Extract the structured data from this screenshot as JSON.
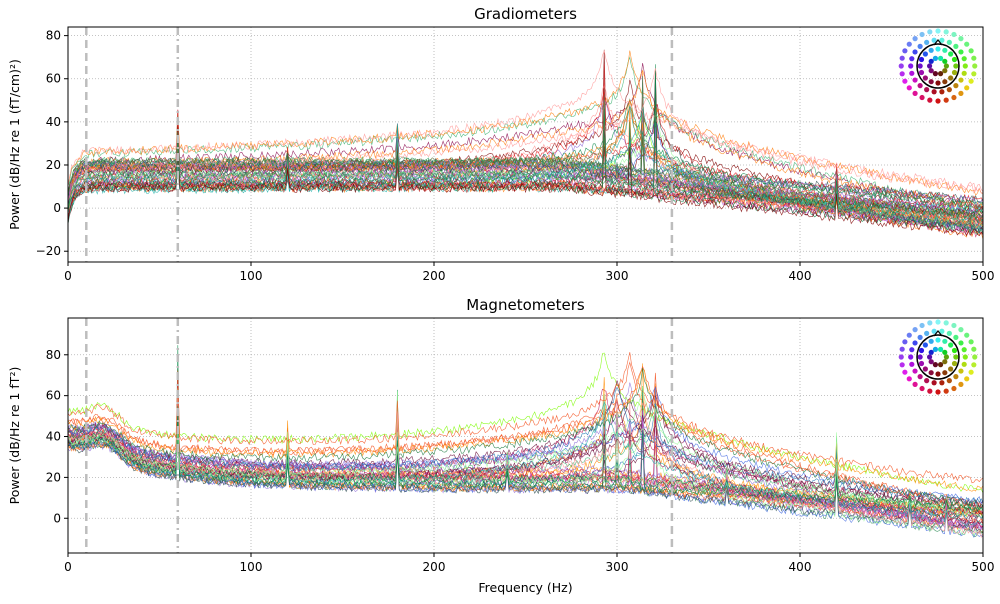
{
  "chart_data": [
    {
      "type": "line",
      "title": "Gradiometers",
      "xlabel": "",
      "ylabel": "Power (dB/Hz re 1 (fT/cm)²)",
      "xlim": [
        0,
        500
      ],
      "ylim": [
        -25,
        84
      ],
      "xticks": [
        "0",
        "100",
        "200",
        "300",
        "400",
        "500"
      ],
      "yticks": [
        "−20",
        "0",
        "20",
        "40",
        "60",
        "80"
      ],
      "grid": true,
      "vertical_markers": [
        {
          "x": 10,
          "style": "dashed"
        },
        {
          "x": 60,
          "style": "dashdot"
        },
        {
          "x": 330,
          "style": "dashed"
        }
      ],
      "peaks": [
        {
          "freq": 60,
          "power": 55
        },
        {
          "freq": 120,
          "power": 30
        },
        {
          "freq": 180,
          "power": 42
        },
        {
          "freq": 293,
          "power": 79
        },
        {
          "freq": 307,
          "power": 53
        },
        {
          "freq": 314,
          "power": 76
        },
        {
          "freq": 321,
          "power": 75
        },
        {
          "freq": 420,
          "power": 22
        }
      ],
      "baseline_range": {
        "low_freq_plateau": [
          8,
          24
        ],
        "at_500Hz": [
          -15,
          5
        ]
      },
      "legend": "sensor-location head icon, top-right"
    },
    {
      "type": "line",
      "title": "Magnetometers",
      "xlabel": "Frequency (Hz)",
      "ylabel": "Power (dB/Hz re 1 fT²)",
      "xlim": [
        0,
        500
      ],
      "ylim": [
        -17,
        98
      ],
      "xticks": [
        "0",
        "100",
        "200",
        "300",
        "400",
        "500"
      ],
      "yticks": [
        "0",
        "20",
        "40",
        "60",
        "80"
      ],
      "grid": true,
      "vertical_markers": [
        {
          "x": 10,
          "style": "dashed"
        },
        {
          "x": 60,
          "style": "dashdot"
        },
        {
          "x": 330,
          "style": "dashed"
        }
      ],
      "peaks": [
        {
          "freq": 60,
          "power": 93
        },
        {
          "freq": 120,
          "power": 51
        },
        {
          "freq": 180,
          "power": 69
        },
        {
          "freq": 240,
          "power": 37
        },
        {
          "freq": 293,
          "power": 85
        },
        {
          "freq": 300,
          "power": 62
        },
        {
          "freq": 307,
          "power": 69
        },
        {
          "freq": 314,
          "power": 80
        },
        {
          "freq": 321,
          "power": 81
        },
        {
          "freq": 360,
          "power": 27
        },
        {
          "freq": 420,
          "power": 44
        },
        {
          "freq": 460,
          "power": 15
        },
        {
          "freq": 480,
          "power": 13
        }
      ],
      "baseline_range": {
        "low_freq_plateau": [
          28,
          45
        ],
        "at_500Hz": [
          -10,
          8
        ]
      },
      "legend": "sensor-location head icon, top-right"
    }
  ]
}
